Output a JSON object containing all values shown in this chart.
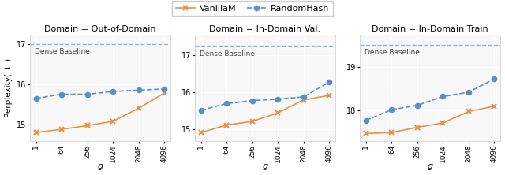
{
  "x_labels": [
    "1",
    "64",
    "256",
    "1024",
    "2048",
    "4096"
  ],
  "x_vals": [
    0,
    1,
    2,
    3,
    4,
    5
  ],
  "subplots": [
    {
      "title": "Domain = Out-of-Domain",
      "vanilla": [
        14.8,
        14.88,
        14.97,
        15.08,
        15.4,
        15.78
      ],
      "random": [
        15.65,
        15.75,
        15.75,
        15.82,
        15.85,
        15.88
      ],
      "dense_baseline": 17.0,
      "yticks": [
        15,
        16,
        17
      ],
      "ylim": [
        14.58,
        17.22
      ]
    },
    {
      "title": "Domain = In-Domain Val.",
      "vanilla": [
        14.92,
        15.12,
        15.22,
        15.45,
        15.8,
        15.92
      ],
      "random": [
        15.52,
        15.7,
        15.78,
        15.82,
        15.88,
        16.28
      ],
      "dense_baseline": 17.25,
      "yticks": [
        15,
        16,
        17
      ],
      "ylim": [
        14.68,
        17.55
      ]
    },
    {
      "title": "Domain = In-Domain Train",
      "vanilla": [
        17.48,
        17.5,
        17.62,
        17.72,
        17.98,
        18.1
      ],
      "random": [
        17.78,
        18.02,
        18.12,
        18.32,
        18.42,
        18.72
      ],
      "dense_baseline": 19.5,
      "yticks": [
        18,
        19
      ],
      "ylim": [
        17.3,
        19.72
      ]
    }
  ],
  "vanilla_color": "#E8924A",
  "random_color": "#5B8EC7",
  "baseline_color": "#5B8EC7",
  "legend_labels": [
    "VanillaM",
    "RandomHash"
  ],
  "ylabel": "Perplexity( ↓ )",
  "xlabel": "g",
  "baseline_text": "Dense Baseline",
  "fig_width": 6.4,
  "fig_height": 2.22,
  "bg_color": "#f8f8f8"
}
